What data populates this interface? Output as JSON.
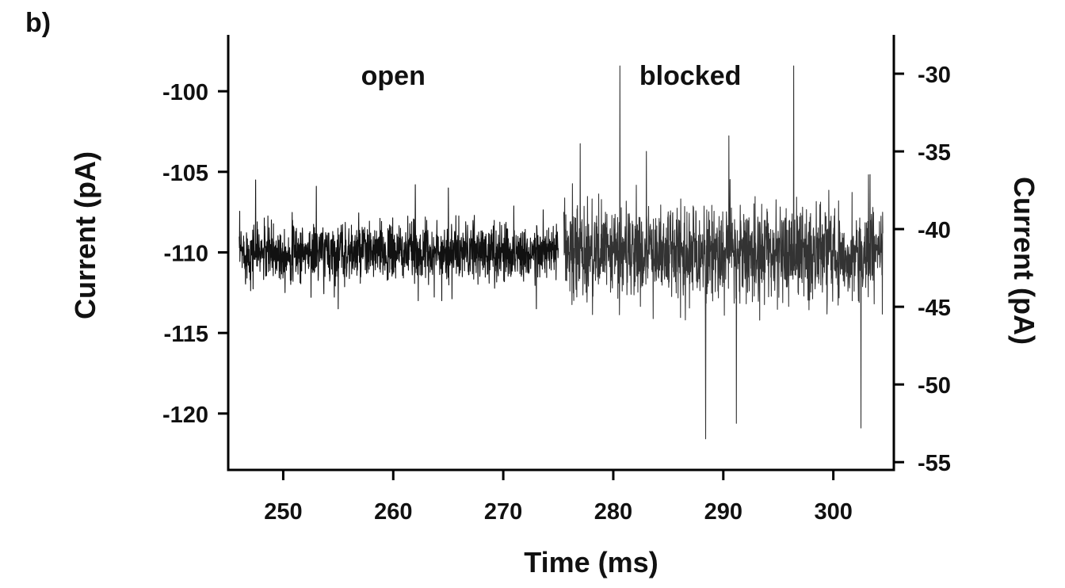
{
  "panel_label": "b)",
  "chart_data": {
    "type": "line",
    "title": "",
    "xlabel": "Time (ms)",
    "ylabel_left": "Current (pA)",
    "ylabel_right": "Current (pA)",
    "xlim": [
      245,
      305.5
    ],
    "ylim_left": [
      -123.5,
      -96.5
    ],
    "ylim_right": [
      -55.5,
      -27.5
    ],
    "x_ticks": [
      250,
      260,
      270,
      280,
      290,
      300
    ],
    "y_ticks_left": [
      -100,
      -105,
      -110,
      -115,
      -120
    ],
    "y_ticks_right": [
      -30,
      -35,
      -40,
      -45,
      -50,
      -55
    ],
    "grid": false,
    "legend": "none",
    "annotations": [
      {
        "text": "open",
        "x": 260,
        "y": -99
      },
      {
        "text": "blocked",
        "x": 287,
        "y": -99
      }
    ],
    "series": [
      {
        "axis": "left",
        "color": "#111111",
        "x_range": [
          246,
          275
        ],
        "mean": -110,
        "noise_sd": 0.9,
        "peak_min": -113.5,
        "peak_max": -105.5
      },
      {
        "axis": "right",
        "color": "#333333",
        "x_range": [
          275.5,
          304.5
        ],
        "mean": -41.5,
        "noise_sd": 1.5,
        "peak_min": -53.5,
        "peak_max": -29.5
      }
    ]
  }
}
